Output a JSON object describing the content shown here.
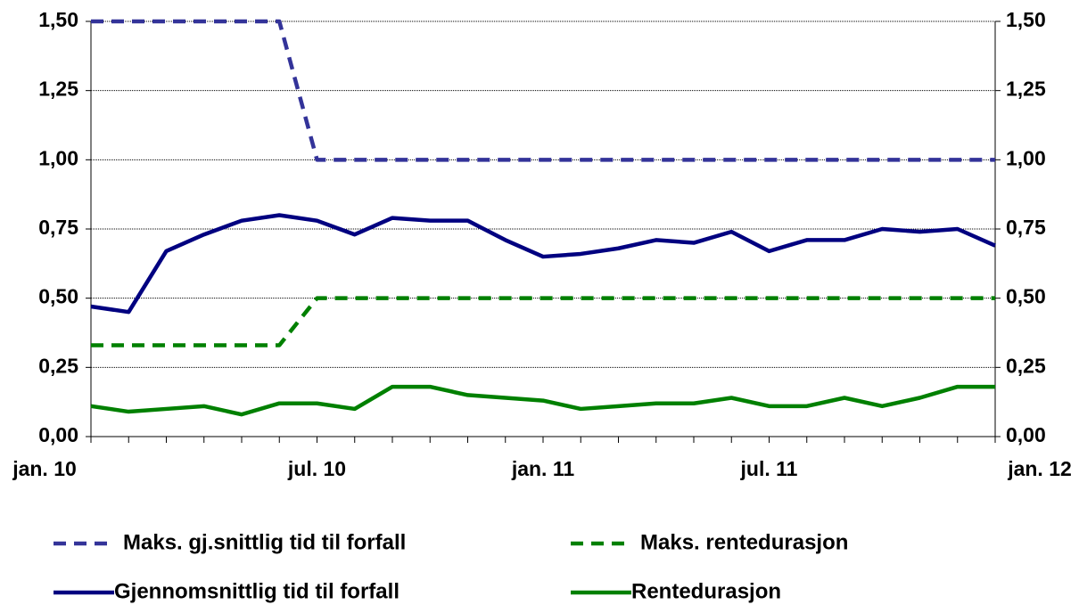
{
  "chart_data": {
    "type": "line",
    "categories": [
      "jan. 10",
      null,
      null,
      null,
      null,
      null,
      "jul. 10",
      null,
      null,
      null,
      null,
      null,
      "jan. 11",
      null,
      null,
      null,
      null,
      null,
      "jul. 11",
      null,
      null,
      null,
      null,
      null,
      "jan. 12"
    ],
    "series": [
      {
        "name": "Maks. gj.snittlig tid til forfall",
        "color": "#333399",
        "dashed": true,
        "values": [
          1.5,
          1.5,
          1.5,
          1.5,
          1.5,
          1.5,
          1.0,
          1.0,
          1.0,
          1.0,
          1.0,
          1.0,
          1.0,
          1.0,
          1.0,
          1.0,
          1.0,
          1.0,
          1.0,
          1.0,
          1.0,
          1.0,
          1.0,
          1.0,
          1.0
        ]
      },
      {
        "name": "Maks. rentedurasjon",
        "color": "#008000",
        "dashed": true,
        "values": [
          0.33,
          0.33,
          0.33,
          0.33,
          0.33,
          0.33,
          0.5,
          0.5,
          0.5,
          0.5,
          0.5,
          0.5,
          0.5,
          0.5,
          0.5,
          0.5,
          0.5,
          0.5,
          0.5,
          0.5,
          0.5,
          0.5,
          0.5,
          0.5,
          0.5
        ]
      },
      {
        "name": "Gjennomsnittlig tid til forfall",
        "color": "#000080",
        "dashed": false,
        "values": [
          0.47,
          0.45,
          0.67,
          0.73,
          0.78,
          0.8,
          0.78,
          0.73,
          0.79,
          0.78,
          0.78,
          0.71,
          0.65,
          0.66,
          0.68,
          0.71,
          0.7,
          0.74,
          0.67,
          0.71,
          0.71,
          0.75,
          0.74,
          0.75,
          0.69
        ]
      },
      {
        "name": "Rentedurasjon",
        "color": "#008000",
        "dashed": false,
        "values": [
          0.11,
          0.09,
          0.1,
          0.11,
          0.08,
          0.12,
          0.12,
          0.1,
          0.18,
          0.18,
          0.15,
          0.14,
          0.13,
          0.1,
          0.11,
          0.12,
          0.12,
          0.14,
          0.11,
          0.11,
          0.14,
          0.11,
          0.14,
          0.18,
          0.18
        ]
      }
    ],
    "ylim": [
      0,
      1.5
    ],
    "yticks": [
      {
        "value": 0,
        "label": "0,00"
      },
      {
        "value": 0.25,
        "label": "0,25"
      },
      {
        "value": 0.5,
        "label": "0,50"
      },
      {
        "value": 0.75,
        "label": "0,75"
      },
      {
        "value": 1.0,
        "label": "1,00"
      },
      {
        "value": 1.25,
        "label": "1,25"
      },
      {
        "value": 1.5,
        "label": "1,50"
      }
    ],
    "y2lim": [
      0,
      1.5
    ],
    "y2ticks": [
      {
        "value": 0,
        "label": "0,00"
      },
      {
        "value": 0.25,
        "label": "0,25"
      },
      {
        "value": 0.5,
        "label": "0,50"
      },
      {
        "value": 0.75,
        "label": "0,75"
      },
      {
        "value": 1.0,
        "label": "1,00"
      },
      {
        "value": 1.25,
        "label": "1,25"
      },
      {
        "value": 1.5,
        "label": "1,50"
      }
    ],
    "grid": true,
    "legend": "bottom"
  }
}
